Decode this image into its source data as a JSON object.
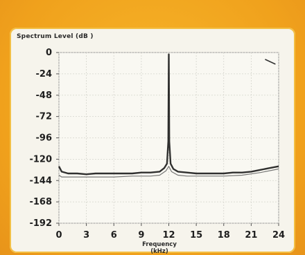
{
  "chart_data": {
    "type": "line",
    "title": "",
    "ylabel": "Spectrum Level (dB )",
    "xlabel": "Frequency (kHz)",
    "xlim": [
      0,
      24
    ],
    "ylim": [
      -192,
      0
    ],
    "xticks": [
      "0",
      "3",
      "6",
      "9",
      "12",
      "15",
      "18",
      "21",
      "24"
    ],
    "yticks": [
      "0",
      "-24",
      "-48",
      "-72",
      "-96",
      "-120",
      "-144",
      "-168",
      "-192"
    ],
    "grid": true,
    "series": [
      {
        "x": [
          0,
          0.3,
          1,
          2,
          3,
          4,
          5,
          6,
          7,
          8,
          9,
          10,
          11,
          11.5,
          11.8,
          11.95,
          12,
          12.05,
          12.2,
          12.5,
          13,
          14,
          15,
          16,
          17,
          18,
          19,
          20,
          21,
          22,
          23,
          24
        ],
        "y": [
          -128,
          -134,
          -136,
          -136,
          -137,
          -136,
          -136,
          -136,
          -136,
          -136,
          -135,
          -135,
          -134,
          -130,
          -125,
          -100,
          -2,
          -100,
          -125,
          -131,
          -134,
          -135,
          -136,
          -136,
          -136,
          -136,
          -135,
          -135,
          -134,
          -132,
          -130,
          -128
        ],
        "color": "#1a1a1a"
      },
      {
        "x": [
          0,
          0.3,
          2,
          4,
          6,
          8,
          10,
          11,
          11.7,
          12,
          12.3,
          13,
          14,
          16,
          18,
          20,
          22,
          24
        ],
        "y": [
          -138,
          -140,
          -140,
          -140,
          -140,
          -139,
          -139,
          -138,
          -133,
          -128,
          -134,
          -138,
          -139,
          -139,
          -139,
          -138,
          -135,
          -131
        ],
        "color": "#555555"
      }
    ],
    "annotations": [
      {
        "type": "marker",
        "x": 23.5,
        "y": -10
      }
    ]
  }
}
